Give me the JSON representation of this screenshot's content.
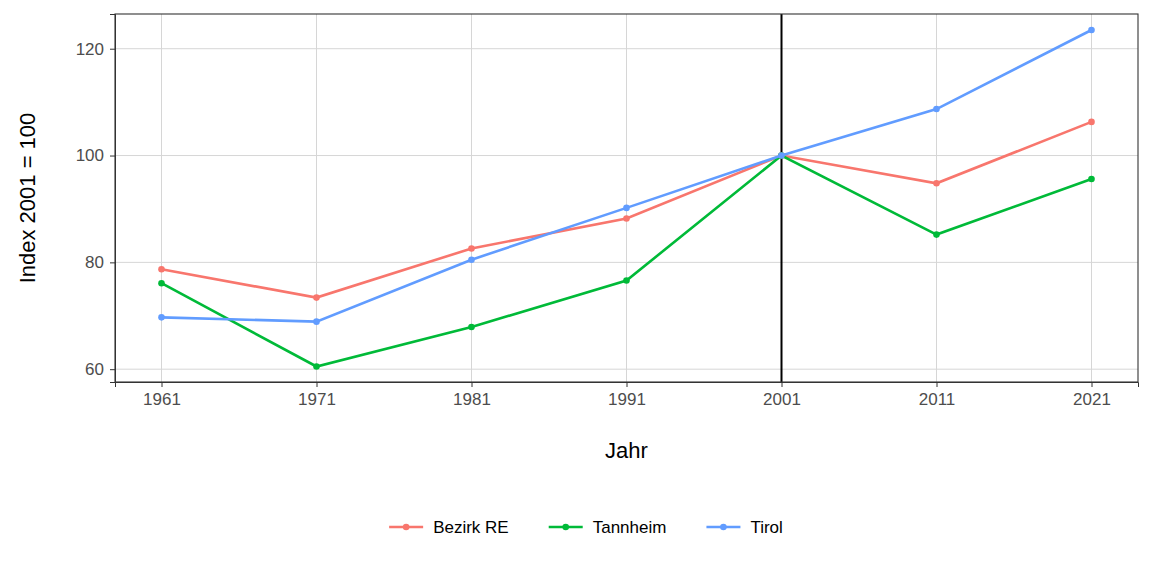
{
  "chart_data": {
    "type": "line",
    "x_label": "Jahr",
    "y_label": "Index 2001 = 100",
    "x": [
      1961,
      1971,
      1981,
      1991,
      2001,
      2011,
      2021
    ],
    "series": [
      {
        "name": "Bezirk RE",
        "color": "#F8766D",
        "marker": "circle",
        "values": [
          78.7,
          73.4,
          82.6,
          88.2,
          100,
          94.8,
          106.3
        ]
      },
      {
        "name": "Tannheim",
        "color": "#00BA38",
        "marker": "circle",
        "values": [
          76.1,
          60.5,
          67.9,
          76.6,
          100,
          85.2,
          95.6
        ]
      },
      {
        "name": "Tirol",
        "color": "#619CFF",
        "marker": "circle",
        "values": [
          69.7,
          68.9,
          80.5,
          90.2,
          100,
          108.7,
          123.5
        ]
      }
    ],
    "reference_x": 2001,
    "xlim": [
      1958,
      2024
    ],
    "xticks": [
      1961,
      1971,
      1981,
      1991,
      2001,
      2011,
      2021
    ],
    "ylim": [
      57.6,
      126.5
    ],
    "yticks": [
      60,
      80,
      100,
      120
    ],
    "grid": true,
    "legend": "bottom"
  }
}
